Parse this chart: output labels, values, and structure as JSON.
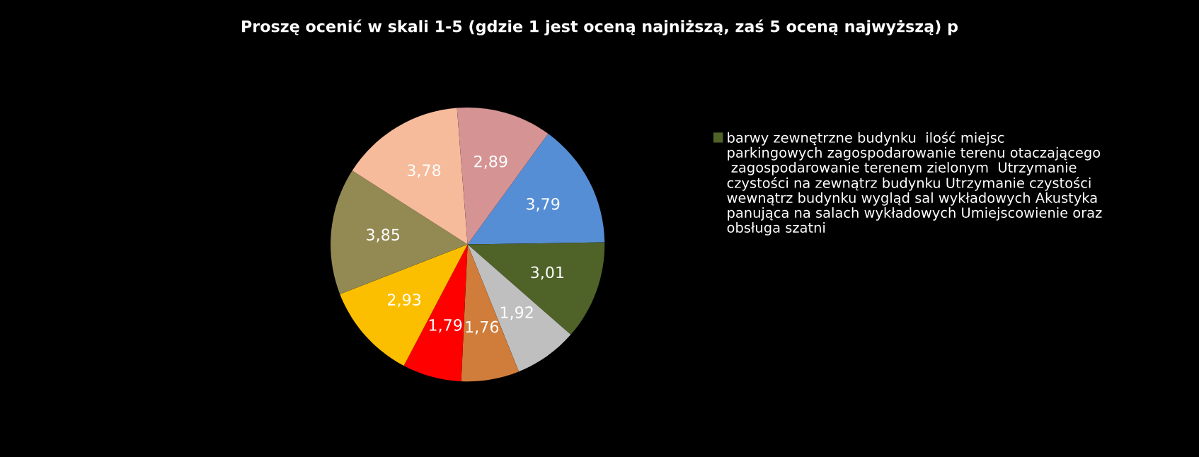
{
  "chart_data": {
    "type": "pie",
    "title": "Proszę ocenić w skali 1-5 (gdzie 1 jest oceną najniższą, zaś 5 oceną najwyższą) p",
    "categories": [
      null,
      "barwy zewnętrzne budynku  ilość miejsc parkingowych zagospodarowanie terenu otaczającego  zagospodarowanie terenem zielonym  Utrzymanie czystości na zewnątrz budynku Utrzymanie czystości wewnątrz budynku wygląd sal wykładowych Akustyka panująca na salach wykładowych Umiejscowienie oraz obsługa szatni",
      null,
      null,
      null,
      null,
      null,
      null,
      null
    ],
    "values": [
      3.79,
      3.01,
      1.92,
      1.76,
      1.79,
      2.93,
      3.85,
      3.78,
      2.89
    ],
    "value_labels": [
      "3,79",
      "3,01",
      "1,92",
      "1,76",
      "1,79",
      "2,93",
      "3,85",
      "3,78",
      "2,89"
    ],
    "colors": [
      "#558ed5",
      "#4f6228",
      "#bfbfbf",
      "#d07c3a",
      "#ff0000",
      "#fcbf00",
      "#938953",
      "#f5bb9b",
      "#d59393"
    ],
    "legend": "right"
  }
}
